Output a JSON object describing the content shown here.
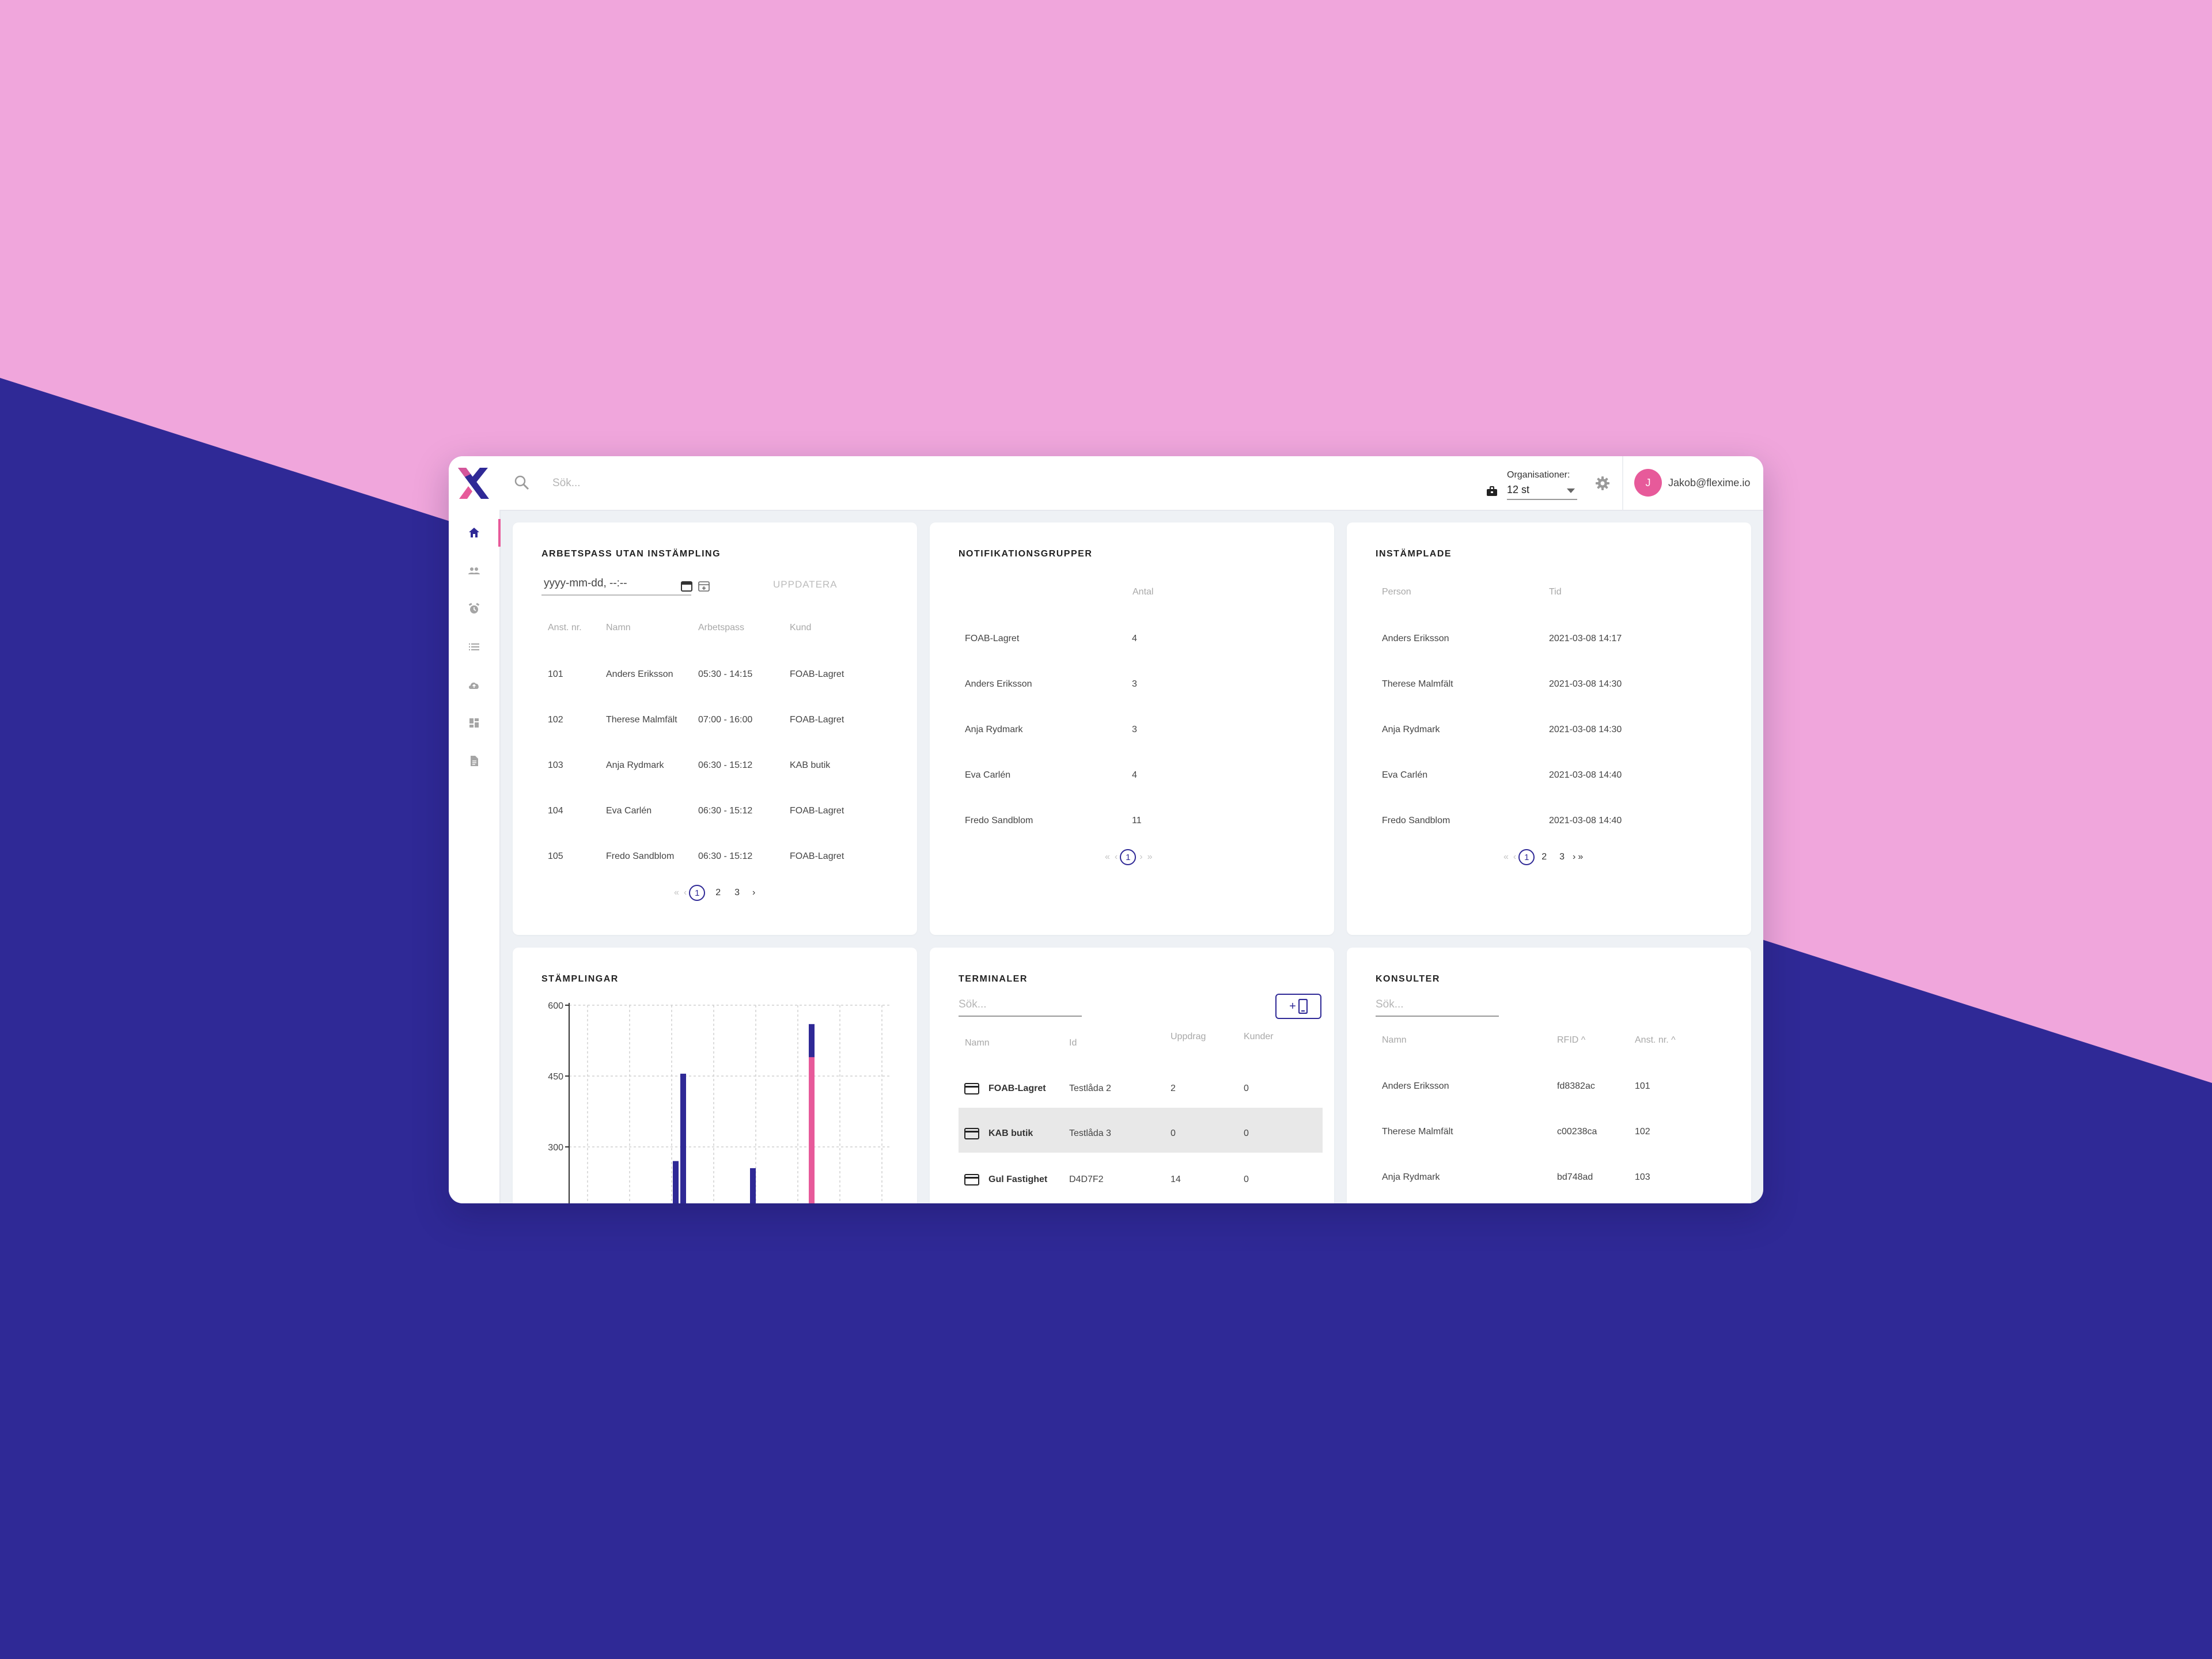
{
  "colors": {
    "pink_bg": "#f0a6dc",
    "navy_bg": "#2f2996",
    "accent": "#e75a9a",
    "brand": "#2f2996"
  },
  "search": {
    "placeholder": "Sök..."
  },
  "organisations": {
    "label": "Organisationer:",
    "value": "12 st",
    "icon": "briefcase-icon"
  },
  "user": {
    "initial": "J",
    "email": "Jakob@flexime.io"
  },
  "sidebar": {
    "icons": [
      "home-icon",
      "people-icon",
      "alarm-icon",
      "list-icon",
      "cloud-upload-icon",
      "dashboard-icon",
      "document-icon"
    ],
    "active": 0
  },
  "shifts": {
    "title": "ARBETSPASS UTAN INSTÄMPLING",
    "date_placeholder": "yyyy-mm-dd, --:--",
    "update_label": "UPPDATERA",
    "headers": [
      "Anst. nr.",
      "Namn",
      "Arbetspass",
      "Kund"
    ],
    "rows": [
      [
        "101",
        "Anders Eriksson",
        "05:30 - 14:15",
        "FOAB-Lagret"
      ],
      [
        "102",
        "Therese Malmfält",
        "07:00 - 16:00",
        "FOAB-Lagret"
      ],
      [
        "103",
        "Anja Rydmark",
        "06:30 - 15:12",
        "KAB butik"
      ],
      [
        "104",
        "Eva Carlén",
        "06:30 - 15:12",
        "FOAB-Lagret"
      ],
      [
        "105",
        "Fredo Sandblom",
        "06:30 - 15:12",
        "FOAB-Lagret"
      ]
    ],
    "pagination": {
      "first": "«",
      "prev": "‹",
      "current": "1",
      "pages": [
        "2",
        "3"
      ],
      "next": "›"
    }
  },
  "notifications": {
    "title": "NOTIFIKATIONSGRUPPER",
    "headers": [
      "Antal"
    ],
    "rows": [
      [
        "FOAB-Lagret",
        "4"
      ],
      [
        "Anders Eriksson",
        "3"
      ],
      [
        "Anja Rydmark",
        "3"
      ],
      [
        "Eva Carlén",
        "4"
      ],
      [
        "Fredo Sandblom",
        "11"
      ]
    ],
    "pagination": {
      "first": "«",
      "prev": "‹",
      "current": "1",
      "next": "›",
      "last": "»"
    }
  },
  "checked_in": {
    "title": "INSTÄMPLADE",
    "headers": [
      "Person",
      "Tid"
    ],
    "rows": [
      [
        "Anders Eriksson",
        "2021-03-08 14:17"
      ],
      [
        "Therese Malmfält",
        "2021-03-08 14:30"
      ],
      [
        "Anja Rydmark",
        "2021-03-08 14:30"
      ],
      [
        "Eva Carlén",
        "2021-03-08 14:40"
      ],
      [
        "Fredo Sandblom",
        "2021-03-08 14:40"
      ]
    ],
    "pagination": {
      "first": "«",
      "prev": "‹",
      "current": "1",
      "pages": [
        "2",
        "3"
      ],
      "next": "›",
      "last": "»"
    }
  },
  "stamps": {
    "title": "STÄMPLINGAR"
  },
  "chart_data": {
    "type": "bar",
    "title": "STÄMPLINGAR",
    "y_ticks": [
      "600",
      "450",
      "300"
    ],
    "ylim": [
      0,
      600
    ],
    "grid": true,
    "series": [
      {
        "color": "#2f2996",
        "values": [
          270,
          455,
          255,
          560
        ]
      },
      {
        "color": "#e75a9a",
        "values": [
          0,
          0,
          0,
          490
        ]
      }
    ]
  },
  "terminals": {
    "title": "TERMINALER",
    "search_placeholder": "Sök...",
    "add_button": "+",
    "headers": [
      "Namn",
      "Id",
      "Uppdrag",
      "Kunder"
    ],
    "rows": [
      [
        "FOAB-Lagret",
        "Testlåda 2",
        "2",
        "0"
      ],
      [
        "KAB butik",
        "Testlåda 3",
        "0",
        "0"
      ],
      [
        "Gul Fastighet",
        "D4D7F2",
        "14",
        "0"
      ]
    ],
    "highlighted_row": 1
  },
  "consultants": {
    "title": "KONSULTER",
    "search_placeholder": "Sök...",
    "headers": [
      "Namn",
      "RFID ^",
      "Anst. nr. ^"
    ],
    "rows": [
      [
        "Anders Eriksson",
        "fd8382ac",
        "101"
      ],
      [
        "Therese Malmfält",
        "c00238ca",
        "102"
      ],
      [
        "Anja Rydmark",
        "bd748ad",
        "103"
      ]
    ]
  }
}
